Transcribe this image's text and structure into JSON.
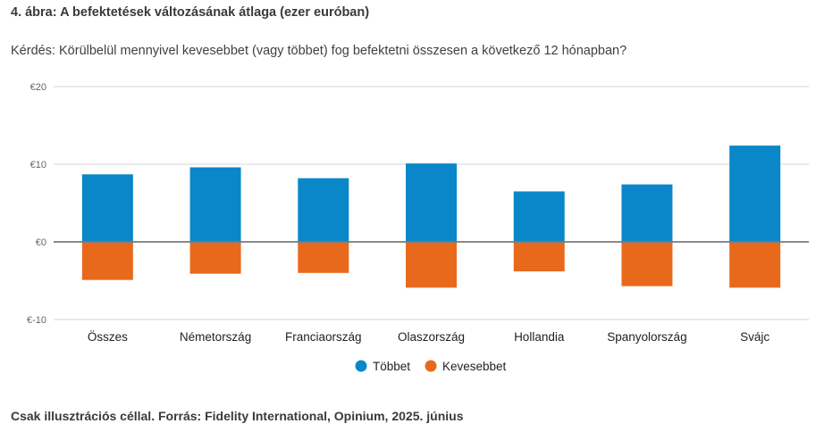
{
  "header": {
    "title": "4. ábra: A befektetések változásának átlaga (ezer euróban)",
    "question": "Kérdés: Körülbelül mennyivel kevesebbet (vagy többet) fog befektetni összesen a következő 12 hónapban?"
  },
  "footer": {
    "note": "Csak illusztrációs céllal. Forrás: Fidelity International, Opinium, 2025. június"
  },
  "chart_data": {
    "type": "bar",
    "title": "4. ábra: A befektetések változásának átlaga (ezer euróban)",
    "xlabel": "",
    "ylabel": "",
    "ylim": [
      -10,
      20
    ],
    "yticks": [
      20,
      10,
      0,
      -10
    ],
    "ytick_labels": [
      "€20",
      "€10",
      "€0",
      "€-10"
    ],
    "grid": true,
    "stacked": true,
    "legend_position": "bottom-center",
    "categories": [
      "Összes",
      "Németország",
      "Franciaország",
      "Olaszország",
      "Hollandia",
      "Spanyolország",
      "Svájc"
    ],
    "series": [
      {
        "name": "Többet",
        "color": "#0a87c8",
        "values": [
          8.7,
          9.6,
          8.2,
          10.1,
          6.5,
          7.4,
          12.4
        ]
      },
      {
        "name": "Kevesebbet",
        "color": "#e8691c",
        "values": [
          -4.9,
          -4.1,
          -4.0,
          -5.9,
          -3.8,
          -5.7,
          -5.9
        ]
      }
    ]
  }
}
